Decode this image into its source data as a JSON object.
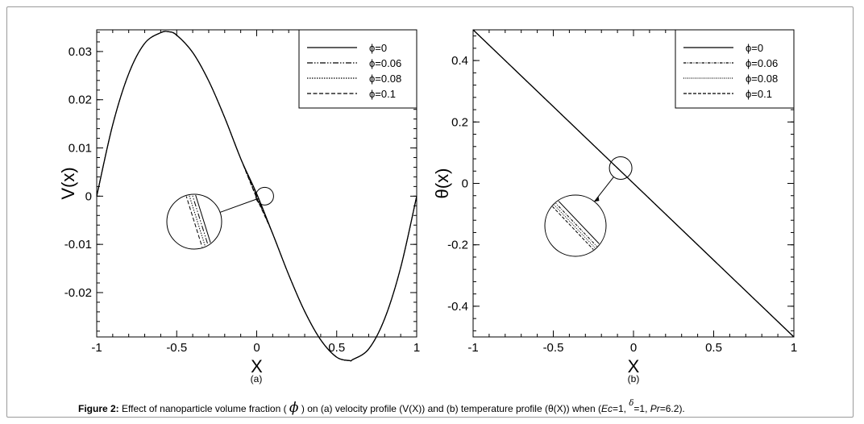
{
  "caption": {
    "label": "Figure 2:",
    "text_a": "Effect of nanoparticle volume fraction (",
    "symbol": "ϕ",
    "text_b": ") on (a) velocity profile (V(X)) and (b) temperature profile (θ(X)) when (",
    "ec_label": "Ec",
    "ec_val": "=1, ",
    "delta_symbol": "δ",
    "delta_val": "=1, ",
    "pr_label": "Pr",
    "pr_val": "=6.2)."
  },
  "chart_data": [
    {
      "type": "line",
      "title": "",
      "sublabel": "(a)",
      "xlabel": "X",
      "ylabel": "V(x)",
      "xlim": [
        -1,
        1
      ],
      "ylim": [
        -0.0292,
        0.0345
      ],
      "xticks": [
        -1,
        -0.5,
        0,
        0.5,
        1
      ],
      "xtick_labels": [
        "-1",
        "-0.5",
        "0",
        "0.5",
        "1"
      ],
      "yticks": [
        -0.02,
        -0.01,
        0,
        0.01,
        0.02,
        0.03
      ],
      "ytick_labels": [
        "-0.02",
        "-0.01",
        "0",
        "0.01",
        "0.02",
        "0.03"
      ],
      "legend_position": "top-right",
      "x": [
        -1,
        -0.9,
        -0.8,
        -0.7,
        -0.6,
        -0.55,
        -0.5,
        -0.4,
        -0.3,
        -0.2,
        -0.1,
        0,
        0.1,
        0.2,
        0.3,
        0.4,
        0.5,
        0.58,
        0.6,
        0.7,
        0.8,
        0.9,
        1
      ],
      "series": [
        {
          "name": "ϕ=0",
          "dash": "",
          "values": [
            0,
            0.0148,
            0.0254,
            0.0317,
            0.0339,
            0.0341,
            0.0334,
            0.0298,
            0.0239,
            0.0163,
            0.0078,
            0.0005,
            -0.0078,
            -0.0163,
            -0.0239,
            -0.0298,
            -0.0334,
            -0.0341,
            -0.0339,
            -0.0317,
            -0.0254,
            -0.0148,
            0
          ]
        },
        {
          "name": "ϕ=0.06",
          "dash": "7 2 1.5 2 1.5 2",
          "values": [
            0,
            0.0148,
            0.0254,
            0.0317,
            0.0339,
            0.0341,
            0.0334,
            0.0298,
            0.0239,
            0.0163,
            0.0078,
            0.0,
            -0.0078,
            -0.0163,
            -0.0239,
            -0.0298,
            -0.0334,
            -0.0341,
            -0.0339,
            -0.0317,
            -0.0254,
            -0.0148,
            0
          ]
        },
        {
          "name": "ϕ=0.08",
          "dash": "1.5 1.5",
          "values": [
            0,
            0.0148,
            0.0254,
            0.0317,
            0.0339,
            0.0341,
            0.0334,
            0.0298,
            0.0239,
            0.0163,
            0.0078,
            -0.0002,
            -0.0078,
            -0.0163,
            -0.0239,
            -0.0298,
            -0.0334,
            -0.0341,
            -0.0339,
            -0.0317,
            -0.0254,
            -0.0148,
            0
          ]
        },
        {
          "name": "ϕ=0.1",
          "dash": "5 2.5",
          "values": [
            0,
            0.0148,
            0.0254,
            0.0317,
            0.0339,
            0.0341,
            0.0334,
            0.0298,
            0.0239,
            0.0163,
            0.0078,
            -0.0004,
            -0.0078,
            -0.0163,
            -0.0239,
            -0.0298,
            -0.0334,
            -0.0341,
            -0.0339,
            -0.0317,
            -0.0254,
            -0.0148,
            0
          ]
        }
      ],
      "zoom_circle_at": [
        0.05,
        0
      ]
    },
    {
      "type": "line",
      "title": "",
      "sublabel": "(b)",
      "xlabel": "X",
      "ylabel": "θ(x)",
      "xlim": [
        -1,
        1
      ],
      "ylim": [
        -0.5,
        0.5
      ],
      "xticks": [
        -1,
        -0.5,
        0,
        0.5,
        1
      ],
      "xtick_labels": [
        "-1",
        "-0.5",
        "0",
        "0.5",
        "1"
      ],
      "yticks": [
        -0.4,
        -0.2,
        0,
        0.2,
        0.4
      ],
      "ytick_labels": [
        "-0.4",
        "-0.2",
        "0",
        "0.2",
        "0.4"
      ],
      "legend_position": "top-right",
      "x": [
        -1,
        1
      ],
      "series": [
        {
          "name": "ϕ=0",
          "dash": "",
          "values": [
            0.5,
            -0.5
          ]
        },
        {
          "name": "ϕ=0.06",
          "dash": "3.5 1.5 1 1.5",
          "values": [
            0.5,
            -0.5
          ]
        },
        {
          "name": "ϕ=0.08",
          "dash": "1 1.5",
          "values": [
            0.5,
            -0.5
          ]
        },
        {
          "name": "ϕ=0.1",
          "dash": "4 2",
          "values": [
            0.5,
            -0.5
          ]
        }
      ],
      "zoom_circle_at": [
        -0.08,
        0.05
      ]
    }
  ]
}
